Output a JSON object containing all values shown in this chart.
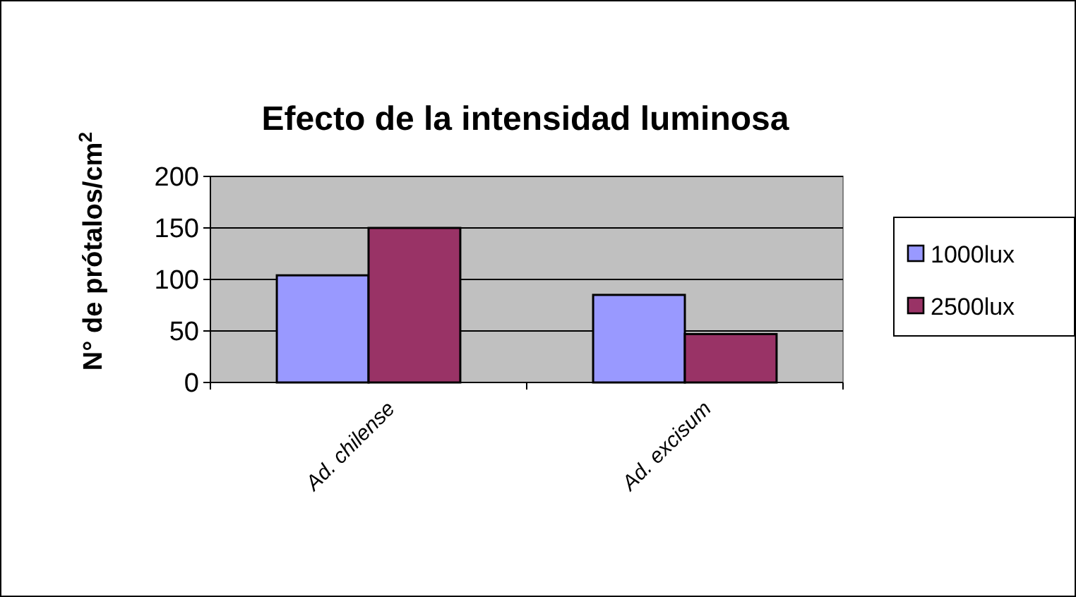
{
  "chart_data": {
    "type": "bar",
    "title": "Efecto de la intensidad luminosa",
    "ylabel": "N° de prótalos/cm$^{2}$",
    "categories": [
      "Ad. chilense",
      "Ad. excisum"
    ],
    "series": [
      {
        "name": "1000lux",
        "color": "#9999ff",
        "values": [
          104,
          85
        ]
      },
      {
        "name": "2500lux",
        "color": "#993366",
        "values": [
          150,
          47
        ]
      }
    ],
    "ylim": [
      0,
      200
    ],
    "yticks": [
      0,
      50,
      100,
      150,
      200
    ],
    "grid": "y",
    "legend": "right"
  }
}
